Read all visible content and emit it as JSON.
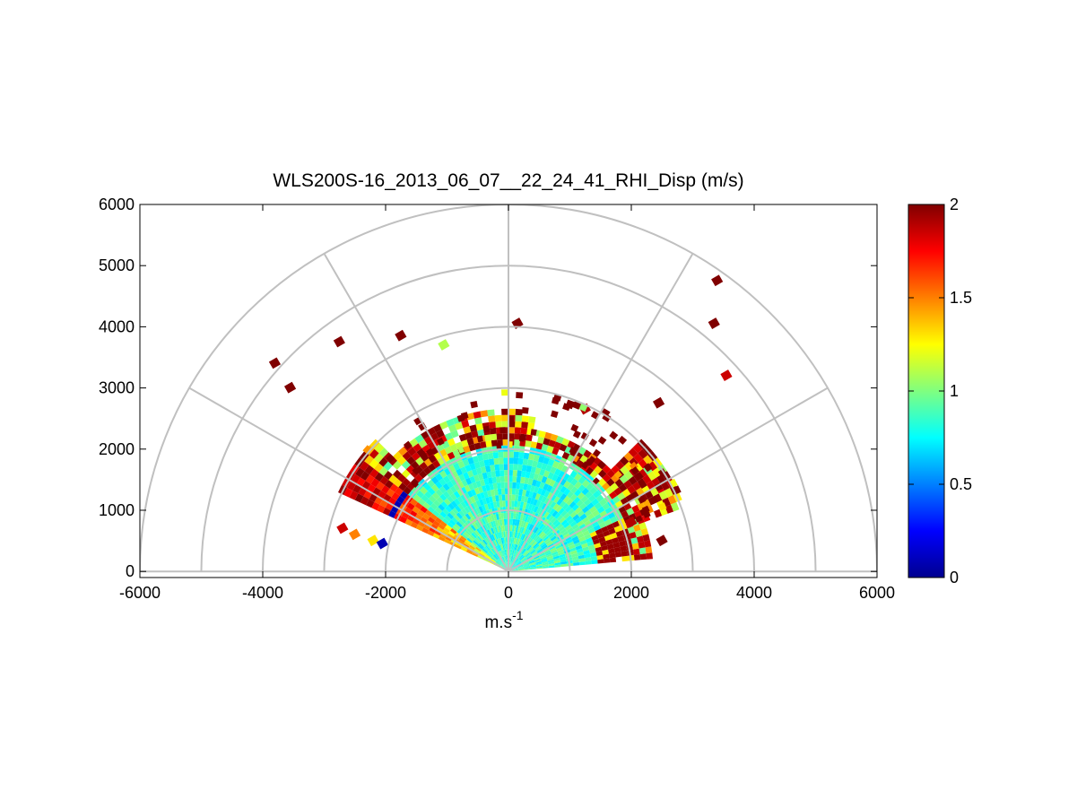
{
  "chart_data": {
    "type": "heatmap",
    "title": "WLS200S-16_2013_06_07__22_24_41_RHI_Disp (m/s)",
    "xlabel_base": "m.s",
    "xlabel_exp": "-1",
    "ylabel": "",
    "xlim": [
      -6000,
      6000
    ],
    "ylim": [
      -100,
      6000
    ],
    "x_ticks": [
      "-6000",
      "-4000",
      "-2000",
      "0",
      "2000",
      "4000",
      "6000"
    ],
    "x_tick_values": [
      -6000,
      -4000,
      -2000,
      0,
      2000,
      4000,
      6000
    ],
    "y_ticks": [
      "0",
      "1000",
      "2000",
      "3000",
      "4000",
      "5000",
      "6000"
    ],
    "y_tick_values": [
      0,
      1000,
      2000,
      3000,
      4000,
      5000,
      6000
    ],
    "polar_grid": {
      "rings": [
        1000,
        2000,
        3000,
        4000,
        5000,
        6000
      ],
      "spokes_deg": [
        0,
        30,
        60,
        90,
        120,
        150,
        180
      ]
    },
    "colorbar": {
      "colormap": "jet",
      "min": 0,
      "max": 2,
      "ticks": [
        "0",
        "0.5",
        "1",
        "1.5",
        "2"
      ],
      "tick_values": [
        0,
        0.5,
        1,
        1.5,
        2
      ]
    },
    "data_extent": {
      "elevation_deg_min": 5,
      "elevation_deg_max": 155,
      "dense_range_max_m": 3000,
      "max_range_m": 5800
    },
    "points": [
      {
        "x": -2700,
        "y": 700,
        "v": 1.85
      },
      {
        "x": -2500,
        "y": 600,
        "v": 1.5
      },
      {
        "x": -2200,
        "y": 500,
        "v": 1.3
      },
      {
        "x": -2050,
        "y": 450,
        "v": 0.1
      },
      {
        "x": -1800,
        "y": 600,
        "v": 1.2
      },
      {
        "x": -1500,
        "y": 700,
        "v": 1.05
      },
      {
        "x": -800,
        "y": 500,
        "v": 0.95
      },
      {
        "x": 0,
        "y": 400,
        "v": 1.0
      },
      {
        "x": 800,
        "y": 500,
        "v": 0.9
      },
      {
        "x": 1500,
        "y": 700,
        "v": 1.0
      },
      {
        "x": 2000,
        "y": 800,
        "v": 1.9
      },
      {
        "x": 2500,
        "y": 500,
        "v": 2.0
      },
      {
        "x": -3800,
        "y": 3400,
        "v": 2.0
      },
      {
        "x": -3550,
        "y": 3000,
        "v": 2.0
      },
      {
        "x": -2750,
        "y": 3750,
        "v": 2.0
      },
      {
        "x": -1750,
        "y": 3850,
        "v": 2.0
      },
      {
        "x": -1050,
        "y": 3700,
        "v": 1.1
      },
      {
        "x": 150,
        "y": 4050,
        "v": 2.0
      },
      {
        "x": 3400,
        "y": 4750,
        "v": 2.0
      },
      {
        "x": 3350,
        "y": 4050,
        "v": 2.0
      },
      {
        "x": 3550,
        "y": 3200,
        "v": 1.85
      },
      {
        "x": 1250,
        "y": 2650,
        "v": 1.9
      },
      {
        "x": 2450,
        "y": 2750,
        "v": 2.0
      }
    ]
  }
}
